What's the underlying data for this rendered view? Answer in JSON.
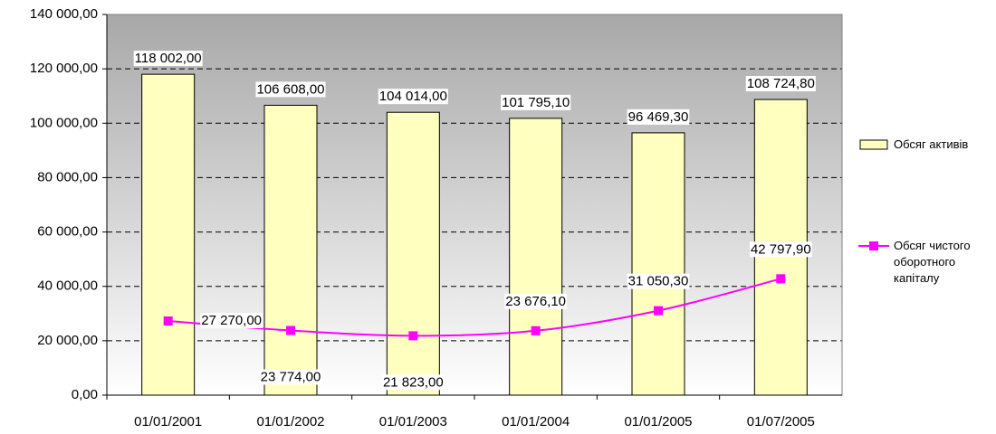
{
  "chart_data": {
    "type": "bar_line",
    "categories": [
      "01/01/2001",
      "01/01/2002",
      "01/01/2003",
      "01/01/2004",
      "01/01/2005",
      "01/07/2005"
    ],
    "series": [
      {
        "name": "Обсяг активів",
        "type": "bar",
        "color": "#ffffc0",
        "values": [
          118002,
          106608,
          104014,
          101795.1,
          96469.3,
          108724.8
        ],
        "value_labels": [
          "118 002,00",
          "106 608,00",
          "104 014,00",
          "101 795,10",
          "96 469,30",
          "108 724,80"
        ]
      },
      {
        "name": "Обсяг чистого оборотного капіталу",
        "type": "line",
        "color": "#ff00ff",
        "smooth": true,
        "values": [
          27270,
          23774,
          21823,
          23676.1,
          31050.3,
          42797.9
        ],
        "value_labels": [
          "27 270,00",
          "23 774,00",
          "21 823,00",
          "23 676,10",
          "31 050,30",
          "42 797,90"
        ]
      }
    ],
    "ylim": [
      0,
      140000
    ],
    "yticks": [
      {
        "value": 0,
        "label": "0,00"
      },
      {
        "value": 20000,
        "label": "20 000,00"
      },
      {
        "value": 40000,
        "label": "40 000,00"
      },
      {
        "value": 60000,
        "label": "60 000,00"
      },
      {
        "value": 80000,
        "label": "80 000,00"
      },
      {
        "value": 100000,
        "label": "100 000,00"
      },
      {
        "value": 120000,
        "label": "120 000,00"
      },
      {
        "value": 140000,
        "label": "140 000,00"
      }
    ],
    "grid": true,
    "legend": "right"
  }
}
